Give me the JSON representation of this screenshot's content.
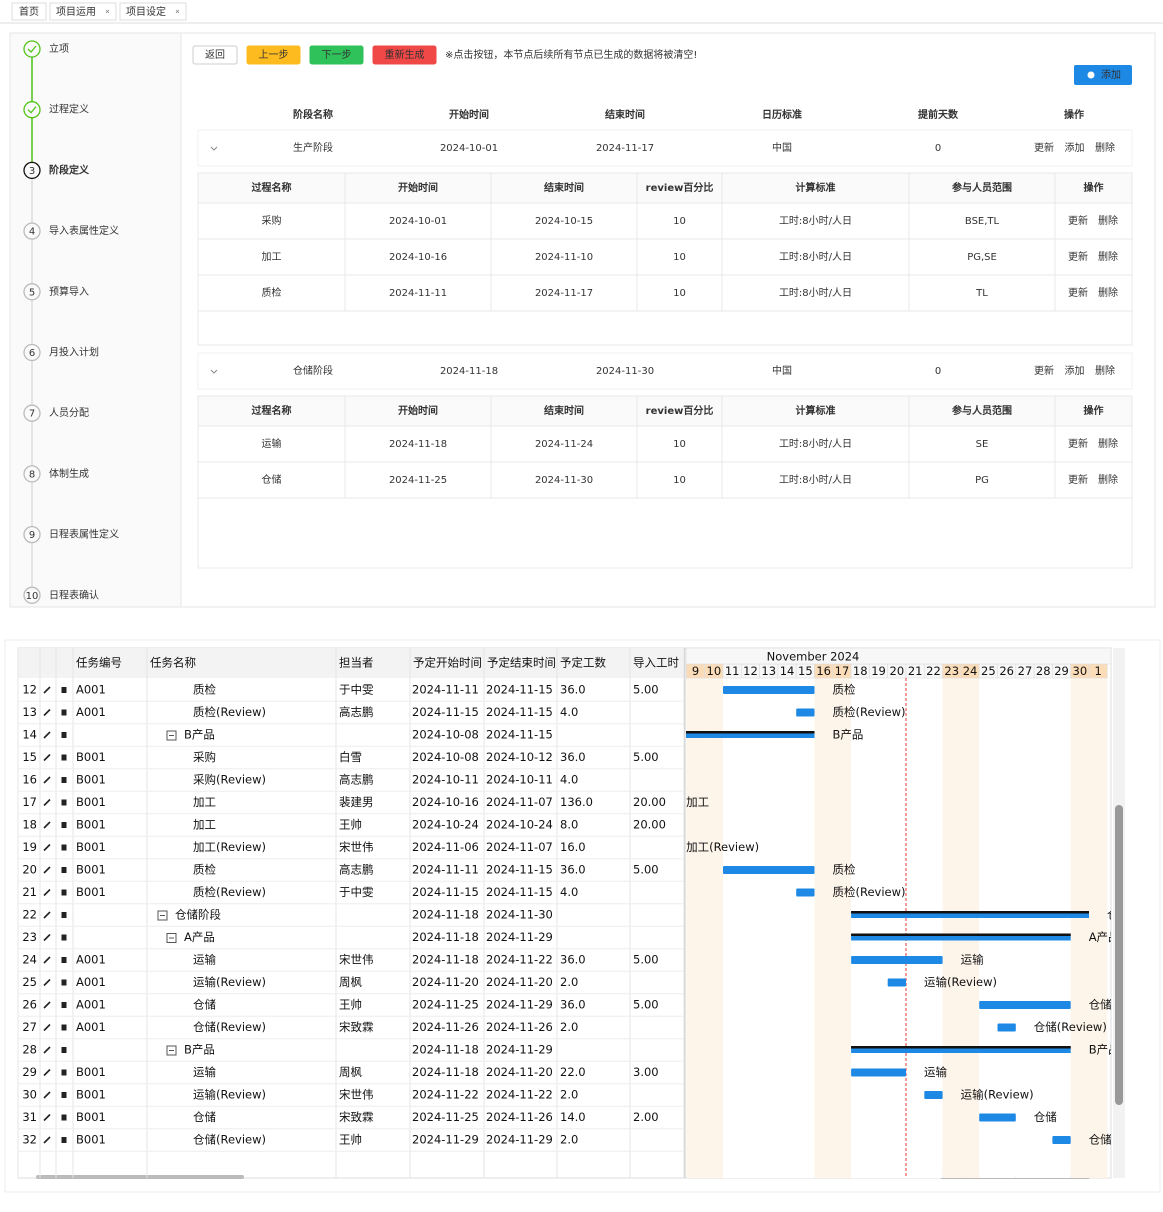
{
  "tabs": [
    "首页",
    "项目运用",
    "项目设定"
  ],
  "steps": [
    {
      "label": "立项",
      "status": "done"
    },
    {
      "label": "过程定义",
      "status": "done"
    },
    {
      "number": 3,
      "label": "阶段定义",
      "status": "current"
    },
    {
      "number": 4,
      "label": "导入表属性定义",
      "status": "pending"
    },
    {
      "number": 5,
      "label": "预算导入",
      "status": "pending"
    },
    {
      "number": 6,
      "label": "月投入计划",
      "status": "pending"
    },
    {
      "number": 7,
      "label": "人员分配",
      "status": "pending"
    },
    {
      "number": 8,
      "label": "体制生成",
      "status": "pending"
    },
    {
      "number": 9,
      "label": "日程表属性定义",
      "status": "pending"
    },
    {
      "number": 10,
      "label": "日程表确认",
      "status": "pending"
    }
  ],
  "toolbar": {
    "back": "返回",
    "prev": "上一步",
    "next": "下一步",
    "regenerate": "重新生成",
    "notice": "※点击按钮，本节点后续所有节点已生成的数据将被清空!",
    "add": "添加"
  },
  "stage_table": {
    "columns": [
      "阶段名称",
      "开始时间",
      "结束时间",
      "日历标准",
      "提前天数",
      "操作"
    ],
    "stages": [
      {
        "name": "生产阶段",
        "start": "2024-10-01",
        "end": "2024-11-17",
        "calendar": "中国",
        "lead_days": 0,
        "actions": [
          "更新",
          "添加",
          "删除"
        ],
        "process_columns": [
          "过程名称",
          "开始时间",
          "结束时间",
          "review百分比",
          "计算标准",
          "参与人员范围",
          "操作"
        ],
        "processes": [
          {
            "name": "采购",
            "start": "2024-10-01",
            "end": "2024-10-15",
            "review": 10,
            "standard": "工时:8小时/人日",
            "members": "BSE,TL",
            "actions": [
              "更新",
              "删除"
            ]
          },
          {
            "name": "加工",
            "start": "2024-10-16",
            "end": "2024-11-10",
            "review": 10,
            "standard": "工时:8小时/人日",
            "members": "PG,SE",
            "actions": [
              "更新",
              "删除"
            ]
          },
          {
            "name": "质检",
            "start": "2024-11-11",
            "end": "2024-11-17",
            "review": 10,
            "standard": "工时:8小时/人日",
            "members": "TL",
            "actions": [
              "更新",
              "删除"
            ]
          }
        ]
      },
      {
        "name": "仓储阶段",
        "start": "2024-11-18",
        "end": "2024-11-30",
        "calendar": "中国",
        "lead_days": 0,
        "actions": [
          "更新",
          "添加",
          "删除"
        ],
        "process_columns": [
          "过程名称",
          "开始时间",
          "结束时间",
          "review百分比",
          "计算标准",
          "参与人员范围",
          "操作"
        ],
        "processes": [
          {
            "name": "运输",
            "start": "2024-11-18",
            "end": "2024-11-24",
            "review": 10,
            "standard": "工时:8小时/人日",
            "members": "SE",
            "actions": [
              "更新",
              "删除"
            ]
          },
          {
            "name": "仓储",
            "start": "2024-11-25",
            "end": "2024-11-30",
            "review": 10,
            "standard": "工时:8小时/人日",
            "members": "PG",
            "actions": [
              "更新",
              "删除"
            ]
          }
        ]
      }
    ]
  },
  "gantt": {
    "columns": [
      "任务编号",
      "任务名称",
      "担当者",
      "予定开始时间",
      "予定结束时间",
      "予定工数",
      "导入工时"
    ],
    "month": "November 2024",
    "start_date": "2024-11-09",
    "days": [
      9,
      10,
      11,
      12,
      13,
      14,
      15,
      16,
      17,
      18,
      19,
      20,
      21,
      22,
      23,
      24,
      25,
      26,
      27,
      28,
      29,
      30,
      1
    ],
    "today": "2024-11-21",
    "rows": [
      {
        "id": 12,
        "code": "A001",
        "name": "质检",
        "level": 2,
        "owner": "于中雯",
        "start": "2024-11-11",
        "end": "2024-11-15",
        "hours": "36.0",
        "imported": "5.00"
      },
      {
        "id": 13,
        "code": "A001",
        "name": "质检(Review)",
        "level": 2,
        "owner": "高志鹏",
        "start": "2024-11-15",
        "end": "2024-11-15",
        "hours": "4.0"
      },
      {
        "id": 14,
        "name": "B产品",
        "level": 1,
        "group": true,
        "start": "2024-10-08",
        "end": "2024-11-15"
      },
      {
        "id": 15,
        "code": "B001",
        "name": "采购",
        "level": 2,
        "owner": "白雪",
        "start": "2024-10-08",
        "end": "2024-10-12",
        "hours": "36.0",
        "imported": "5.00"
      },
      {
        "id": 16,
        "code": "B001",
        "name": "采购(Review)",
        "level": 2,
        "owner": "高志鹏",
        "start": "2024-10-11",
        "end": "2024-10-11",
        "hours": "4.0"
      },
      {
        "id": 17,
        "code": "B001",
        "name": "加工",
        "level": 2,
        "owner": "裴建男",
        "start": "2024-10-16",
        "end": "2024-11-07",
        "hours": "136.0",
        "imported": "20.00"
      },
      {
        "id": 18,
        "code": "B001",
        "name": "加工",
        "level": 2,
        "owner": "王帅",
        "start": "2024-10-24",
        "end": "2024-10-24",
        "hours": "8.0",
        "imported": "20.00"
      },
      {
        "id": 19,
        "code": "B001",
        "name": "加工(Review)",
        "level": 2,
        "owner": "宋世伟",
        "start": "2024-11-06",
        "end": "2024-11-07",
        "hours": "16.0"
      },
      {
        "id": 20,
        "code": "B001",
        "name": "质检",
        "level": 2,
        "owner": "高志鹏",
        "start": "2024-11-11",
        "end": "2024-11-15",
        "hours": "36.0",
        "imported": "5.00"
      },
      {
        "id": 21,
        "code": "B001",
        "name": "质检(Review)",
        "level": 2,
        "owner": "于中雯",
        "start": "2024-11-15",
        "end": "2024-11-15",
        "hours": "4.0"
      },
      {
        "id": 22,
        "name": "仓储阶段",
        "level": 0,
        "group": true,
        "start": "2024-11-18",
        "end": "2024-11-30"
      },
      {
        "id": 23,
        "name": "A产品",
        "level": 1,
        "group": true,
        "start": "2024-11-18",
        "end": "2024-11-29"
      },
      {
        "id": 24,
        "code": "A001",
        "name": "运输",
        "level": 2,
        "owner": "宋世伟",
        "start": "2024-11-18",
        "end": "2024-11-22",
        "hours": "36.0",
        "imported": "5.00"
      },
      {
        "id": 25,
        "code": "A001",
        "name": "运输(Review)",
        "level": 2,
        "owner": "周枫",
        "start": "2024-11-20",
        "end": "2024-11-20",
        "hours": "2.0"
      },
      {
        "id": 26,
        "code": "A001",
        "name": "仓储",
        "level": 2,
        "owner": "王帅",
        "start": "2024-11-25",
        "end": "2024-11-29",
        "hours": "36.0",
        "imported": "5.00"
      },
      {
        "id": 27,
        "code": "A001",
        "name": "仓储(Review)",
        "level": 2,
        "owner": "宋致霖",
        "start": "2024-11-26",
        "end": "2024-11-26",
        "hours": "2.0"
      },
      {
        "id": 28,
        "name": "B产品",
        "level": 1,
        "group": true,
        "start": "2024-11-18",
        "end": "2024-11-29"
      },
      {
        "id": 29,
        "code": "B001",
        "name": "运输",
        "level": 2,
        "owner": "周枫",
        "start": "2024-11-18",
        "end": "2024-11-20",
        "hours": "22.0",
        "imported": "3.00"
      },
      {
        "id": 30,
        "code": "B001",
        "name": "运输(Review)",
        "level": 2,
        "owner": "宋世伟",
        "start": "2024-11-22",
        "end": "2024-11-22",
        "hours": "2.0"
      },
      {
        "id": 31,
        "code": "B001",
        "name": "仓储",
        "level": 2,
        "owner": "宋致霖",
        "start": "2024-11-25",
        "end": "2024-11-26",
        "hours": "14.0",
        "imported": "2.00"
      },
      {
        "id": 32,
        "code": "B001",
        "name": "仓储(Review)",
        "level": 2,
        "owner": "王帅",
        "start": "2024-11-29",
        "end": "2024-11-29",
        "hours": "2.0"
      }
    ]
  }
}
